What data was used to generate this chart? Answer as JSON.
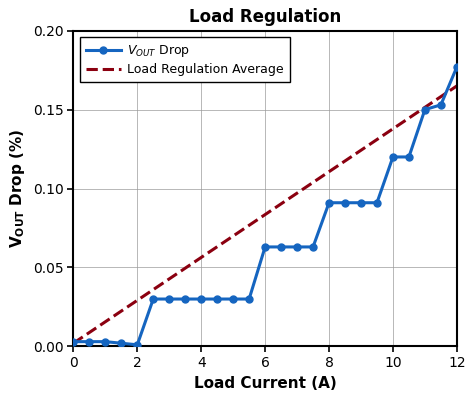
{
  "title": "Load Regulation",
  "xlabel": "Load Current (A)",
  "xlim": [
    0,
    12
  ],
  "ylim": [
    0.0,
    0.2
  ],
  "xticks": [
    0,
    2,
    4,
    6,
    8,
    10,
    12
  ],
  "yticks": [
    0.0,
    0.05,
    0.1,
    0.15,
    0.2
  ],
  "line_color": "#1565c0",
  "avg_color": "#8b0010",
  "line_data_x": [
    0,
    0.5,
    1.0,
    1.5,
    2.0,
    2.5,
    3.0,
    3.5,
    4.0,
    4.5,
    5.0,
    5.5,
    6.0,
    6.5,
    7.0,
    7.5,
    8.0,
    8.5,
    9.0,
    9.5,
    10.0,
    10.5,
    11.0,
    11.5,
    12.0
  ],
  "line_data_y": [
    0.003,
    0.003,
    0.003,
    0.002,
    0.001,
    0.03,
    0.03,
    0.03,
    0.03,
    0.03,
    0.03,
    0.03,
    0.063,
    0.063,
    0.063,
    0.063,
    0.091,
    0.091,
    0.091,
    0.091,
    0.12,
    0.12,
    0.15,
    0.153,
    0.177
  ],
  "avg_data_x": [
    0,
    12
  ],
  "avg_data_y": [
    0.002,
    0.165
  ],
  "bg_color": "#ffffff",
  "grid_color": "#999999",
  "legend_label1": "V$_{OUT}$ Drop",
  "legend_label2": "Load Regulation Average"
}
